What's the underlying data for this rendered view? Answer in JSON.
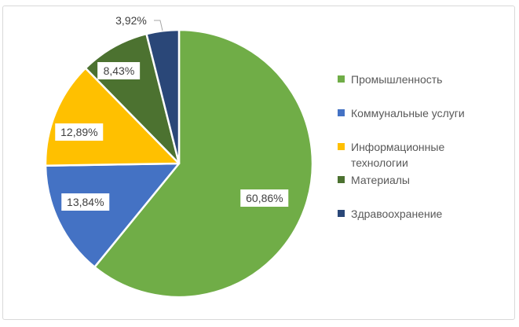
{
  "chart_data": {
    "type": "pie",
    "title": "",
    "legend_position": "right",
    "direction": "clockwise",
    "start_angle_deg": 0,
    "decimal_separator": ",",
    "series": [
      {
        "name": "Промышленность",
        "value": 60.86,
        "label": "60,86%",
        "color": "#70AD47"
      },
      {
        "name": "Коммунальные услуги",
        "value": 13.84,
        "label": "13,84%",
        "color": "#4472C4"
      },
      {
        "name": "Информационные технологии",
        "value": 12.89,
        "label": "12,89%",
        "color": "#FFC000"
      },
      {
        "name": "Материалы",
        "value": 8.43,
        "label": "8,43%",
        "color": "#4C7230"
      },
      {
        "name": "Здравоохранение",
        "value": 3.92,
        "label": "3,92%",
        "color": "#2A4778"
      }
    ]
  },
  "ui": {
    "frame_border_color": "#D9D9D9",
    "background_color": "#FFFFFF",
    "slice_separator_color": "#FFFFFF",
    "leader_line_color": "#A6A6A6",
    "data_label_text_color": "#404040",
    "legend_text_color": "#595959"
  }
}
